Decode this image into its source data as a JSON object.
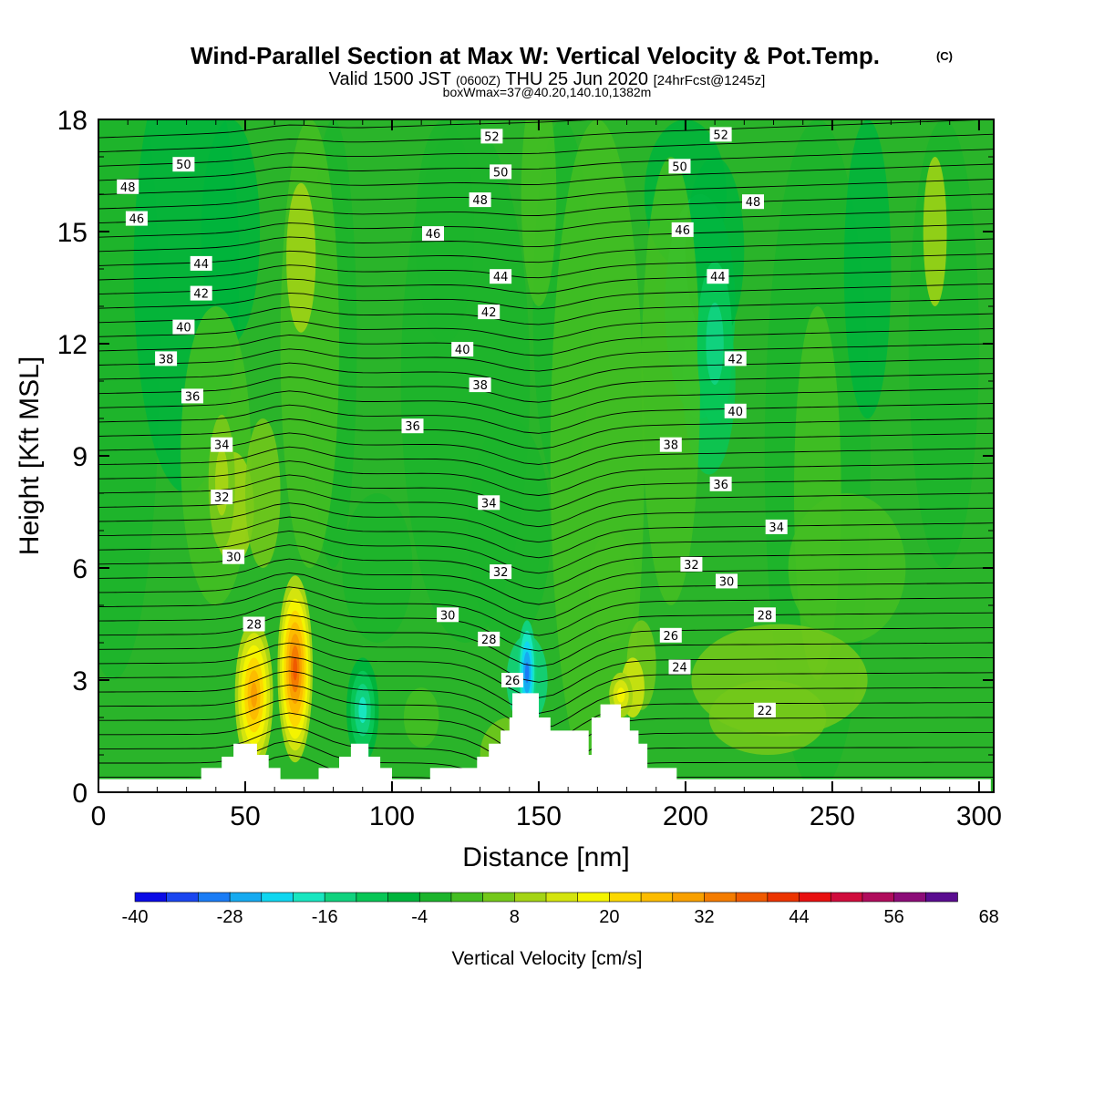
{
  "chart_data": {
    "type": "heatmap",
    "title": "Wind-Parallel Section at Max W: Vertical Velocity & Pot.Temp.",
    "copyright": "(C)",
    "subtitle": {
      "part1": "Valid 1500 JST",
      "part2": "(0600Z)",
      "part3": "THU 25 Jun 2020",
      "part4": "[24hrFcst@1245z]"
    },
    "subtitle2": "boxWmax=37@40.20,140.10,1382m",
    "xlabel": "Distance [nm]",
    "ylabel": "Height [Kft MSL]",
    "xlim": [
      0,
      305
    ],
    "ylim": [
      0,
      18
    ],
    "xticks": [
      "0",
      "50",
      "100",
      "150",
      "200",
      "250",
      "300"
    ],
    "yticks": [
      "0",
      "3",
      "6",
      "9",
      "12",
      "15",
      "18"
    ],
    "colorbar": {
      "label": "Vertical Velocity [cm/s]",
      "tick_labels": [
        "-40",
        "-28",
        "-16",
        "-4",
        "8",
        "20",
        "32",
        "44",
        "56",
        "68"
      ],
      "colors": [
        "#0a0ae6",
        "#1a46f0",
        "#1a7cf5",
        "#16aaf0",
        "#10d6f0",
        "#18e6c0",
        "#10d27e",
        "#08c656",
        "#00b43c",
        "#1cb42c",
        "#44be22",
        "#74c81a",
        "#a4d414",
        "#d4e40e",
        "#f4f400",
        "#fcd800",
        "#fcbc00",
        "#f8a000",
        "#f47c00",
        "#f05a00",
        "#ec3400",
        "#e81010",
        "#d00c3c",
        "#b00c5c",
        "#8c0c78",
        "#5a0c90"
      ],
      "range": [
        -40,
        68
      ],
      "step": 4
    },
    "contour_labels": [
      {
        "text": "52",
        "x": 134,
        "y": 17.55
      },
      {
        "text": "52",
        "x": 212,
        "y": 17.6
      },
      {
        "text": "50",
        "x": 29,
        "y": 16.8
      },
      {
        "text": "50",
        "x": 137,
        "y": 16.6
      },
      {
        "text": "50",
        "x": 198,
        "y": 16.75
      },
      {
        "text": "48",
        "x": 10,
        "y": 16.2
      },
      {
        "text": "48",
        "x": 130,
        "y": 15.85
      },
      {
        "text": "48",
        "x": 223,
        "y": 15.8
      },
      {
        "text": "46",
        "x": 13,
        "y": 15.35
      },
      {
        "text": "46",
        "x": 114,
        "y": 14.95
      },
      {
        "text": "46",
        "x": 199,
        "y": 15.05
      },
      {
        "text": "44",
        "x": 35,
        "y": 14.15
      },
      {
        "text": "44",
        "x": 137,
        "y": 13.8
      },
      {
        "text": "44",
        "x": 211,
        "y": 13.8
      },
      {
        "text": "42",
        "x": 35,
        "y": 13.35
      },
      {
        "text": "42",
        "x": 133,
        "y": 12.85
      },
      {
        "text": "42",
        "x": 217,
        "y": 11.6
      },
      {
        "text": "40",
        "x": 29,
        "y": 12.45
      },
      {
        "text": "40",
        "x": 124,
        "y": 11.85
      },
      {
        "text": "40",
        "x": 217,
        "y": 10.2
      },
      {
        "text": "38",
        "x": 23,
        "y": 11.6
      },
      {
        "text": "38",
        "x": 130,
        "y": 10.9
      },
      {
        "text": "38",
        "x": 195,
        "y": 9.3
      },
      {
        "text": "36",
        "x": 32,
        "y": 10.6
      },
      {
        "text": "36",
        "x": 107,
        "y": 9.8
      },
      {
        "text": "36",
        "x": 212,
        "y": 8.25
      },
      {
        "text": "34",
        "x": 42,
        "y": 9.3
      },
      {
        "text": "34",
        "x": 133,
        "y": 7.75
      },
      {
        "text": "34",
        "x": 231,
        "y": 7.1
      },
      {
        "text": "32",
        "x": 42,
        "y": 7.9
      },
      {
        "text": "32",
        "x": 137,
        "y": 5.9
      },
      {
        "text": "32",
        "x": 202,
        "y": 6.1
      },
      {
        "text": "30",
        "x": 46,
        "y": 6.3
      },
      {
        "text": "30",
        "x": 119,
        "y": 4.75
      },
      {
        "text": "30",
        "x": 214,
        "y": 5.65
      },
      {
        "text": "28",
        "x": 53,
        "y": 4.5
      },
      {
        "text": "28",
        "x": 133,
        "y": 4.1
      },
      {
        "text": "28",
        "x": 227,
        "y": 4.75
      },
      {
        "text": "26",
        "x": 141,
        "y": 3.0
      },
      {
        "text": "26",
        "x": 195,
        "y": 4.2
      },
      {
        "text": "24",
        "x": 198,
        "y": 3.35
      },
      {
        "text": "22",
        "x": 227,
        "y": 2.2
      }
    ],
    "terrain_nm_kft": [
      [
        0,
        0.35
      ],
      [
        35,
        0.35
      ],
      [
        35,
        0.65
      ],
      [
        42,
        0.65
      ],
      [
        42,
        0.95
      ],
      [
        46,
        0.95
      ],
      [
        46,
        1.3
      ],
      [
        54,
        1.3
      ],
      [
        54,
        1.0
      ],
      [
        58,
        1.0
      ],
      [
        58,
        0.65
      ],
      [
        62,
        0.65
      ],
      [
        62,
        0.35
      ],
      [
        75,
        0.35
      ],
      [
        75,
        0.65
      ],
      [
        82,
        0.65
      ],
      [
        82,
        0.95
      ],
      [
        86,
        0.95
      ],
      [
        86,
        1.3
      ],
      [
        92,
        1.3
      ],
      [
        92,
        0.95
      ],
      [
        96,
        0.95
      ],
      [
        96,
        0.65
      ],
      [
        100,
        0.65
      ],
      [
        100,
        0.35
      ],
      [
        113,
        0.35
      ],
      [
        113,
        0.65
      ],
      [
        129,
        0.65
      ],
      [
        129,
        0.95
      ],
      [
        133,
        0.95
      ],
      [
        133,
        1.3
      ],
      [
        137,
        1.3
      ],
      [
        137,
        1.65
      ],
      [
        140,
        1.65
      ],
      [
        140,
        2.0
      ],
      [
        141,
        2.0
      ],
      [
        141,
        2.65
      ],
      [
        150,
        2.65
      ],
      [
        150,
        2.0
      ],
      [
        154,
        2.0
      ],
      [
        154,
        1.65
      ],
      [
        167,
        1.65
      ],
      [
        167,
        1.0
      ],
      [
        168,
        1.0
      ],
      [
        168,
        2.0
      ],
      [
        171,
        2.0
      ],
      [
        171,
        2.35
      ],
      [
        178,
        2.35
      ],
      [
        178,
        2.0
      ],
      [
        181,
        2.0
      ],
      [
        181,
        1.65
      ],
      [
        184,
        1.65
      ],
      [
        184,
        1.3
      ],
      [
        187,
        1.3
      ],
      [
        187,
        0.65
      ],
      [
        197,
        0.65
      ],
      [
        197,
        0.35
      ],
      [
        304,
        0.35
      ],
      [
        304,
        0
      ],
      [
        0,
        0
      ]
    ]
  }
}
